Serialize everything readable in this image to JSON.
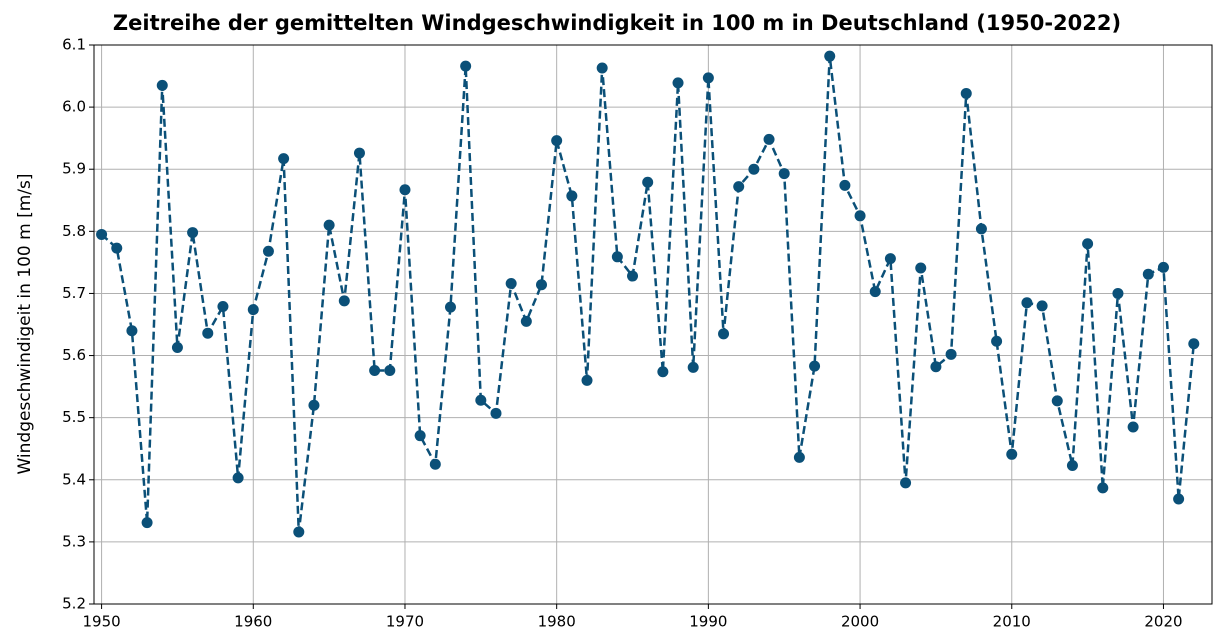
{
  "chart_data": {
    "type": "line",
    "title": "Zeitreihe der gemittelten Windgeschwindigkeit in 100 m in Deutschland (1950-2022)",
    "y_label": "Windgeschwindigeit in 100 m [m/s]",
    "x": [
      1950,
      1951,
      1952,
      1953,
      1954,
      1955,
      1956,
      1957,
      1958,
      1959,
      1960,
      1961,
      1962,
      1963,
      1964,
      1965,
      1966,
      1967,
      1968,
      1969,
      1970,
      1971,
      1972,
      1973,
      1974,
      1975,
      1976,
      1977,
      1978,
      1979,
      1980,
      1981,
      1982,
      1983,
      1984,
      1985,
      1986,
      1987,
      1988,
      1989,
      1990,
      1991,
      1992,
      1993,
      1994,
      1995,
      1996,
      1997,
      1998,
      1999,
      2000,
      2001,
      2002,
      2003,
      2004,
      2005,
      2006,
      2007,
      2008,
      2009,
      2010,
      2011,
      2012,
      2013,
      2014,
      2015,
      2016,
      2017,
      2018,
      2019,
      2020,
      2021,
      2022
    ],
    "series": [
      {
        "name": "Windgeschwindigkeit",
        "color": "#0b5078",
        "values": [
          5.795,
          5.773,
          5.64,
          5.331,
          6.035,
          5.613,
          5.798,
          5.636,
          5.679,
          5.403,
          5.674,
          5.768,
          5.917,
          5.316,
          5.52,
          5.81,
          5.688,
          5.926,
          5.576,
          5.576,
          5.867,
          5.471,
          5.425,
          5.678,
          6.066,
          5.528,
          5.507,
          5.716,
          5.655,
          5.714,
          5.946,
          5.857,
          5.56,
          6.063,
          5.759,
          5.728,
          5.879,
          5.574,
          6.039,
          5.581,
          6.047,
          5.635,
          5.872,
          5.9,
          5.948,
          5.893,
          5.436,
          5.583,
          6.082,
          5.874,
          5.825,
          5.703,
          5.756,
          5.395,
          5.741,
          5.582,
          5.602,
          6.022,
          5.804,
          5.623,
          5.441,
          5.685,
          5.68,
          5.527,
          5.423,
          5.78,
          5.387,
          5.7,
          5.485,
          5.731,
          5.742,
          5.369,
          5.619
        ]
      }
    ],
    "xlim": [
      1949.5,
      2023.2
    ],
    "xticks": [
      1950,
      1960,
      1970,
      1980,
      1990,
      2000,
      2010,
      2020
    ],
    "ylim": [
      5.2,
      6.1
    ],
    "yticks": [
      5.2,
      5.3,
      5.4,
      5.5,
      5.6,
      5.7,
      5.8,
      5.9,
      {
        "value": 6,
        "label": "6.0"
      },
      6.1
    ],
    "grid": true
  }
}
